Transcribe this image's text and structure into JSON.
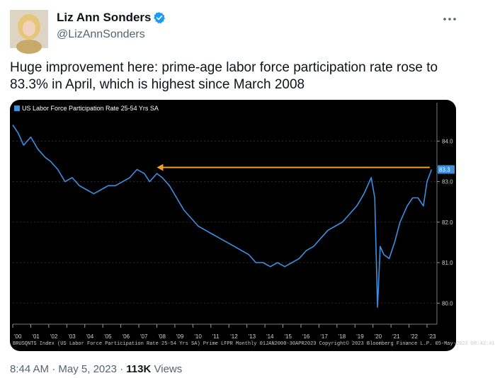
{
  "tweet": {
    "display_name": "Liz Ann Sonders",
    "handle": "@LizAnnSonders",
    "text": "Huge improvement here: prime-age labor force participation rate rose to 83.3% in April, which is highest since March 2008",
    "time": "8:44 AM",
    "separator": "·",
    "date": "May 5, 2023",
    "views_count": "113K",
    "views_label": "Views",
    "verified_color": "#1d9bf0"
  },
  "chart_data": {
    "type": "line",
    "legend": "US Labor Force Participation Rate 25-54 Yrs SA",
    "series": [
      {
        "name": "US Labor Force Participation Rate 25-54 Yrs SA",
        "color": "#3d8fe0",
        "x": [
          2000.0,
          2000.3,
          2000.6,
          2001.0,
          2001.4,
          2001.8,
          2002.1,
          2002.5,
          2002.9,
          2003.3,
          2003.7,
          2004.1,
          2004.5,
          2004.9,
          2005.3,
          2005.7,
          2006.1,
          2006.5,
          2006.9,
          2007.3,
          2007.6,
          2008.0,
          2008.3,
          2008.7,
          2009.1,
          2009.5,
          2009.9,
          2010.3,
          2010.7,
          2011.1,
          2011.5,
          2011.9,
          2012.3,
          2012.7,
          2013.1,
          2013.5,
          2013.9,
          2014.3,
          2014.7,
          2015.1,
          2015.5,
          2015.9,
          2016.3,
          2016.7,
          2017.1,
          2017.5,
          2017.9,
          2018.3,
          2018.7,
          2019.1,
          2019.5,
          2019.9,
          2020.1,
          2020.25,
          2020.4,
          2020.6,
          2020.9,
          2021.2,
          2021.5,
          2021.9,
          2022.2,
          2022.5,
          2022.8,
          2023.0,
          2023.25
        ],
        "y": [
          84.4,
          84.2,
          83.9,
          84.1,
          83.8,
          83.6,
          83.5,
          83.3,
          83.0,
          83.1,
          82.9,
          82.8,
          82.7,
          82.8,
          82.9,
          82.9,
          83.0,
          83.1,
          83.3,
          83.2,
          83.0,
          83.2,
          83.1,
          82.9,
          82.6,
          82.3,
          82.1,
          81.9,
          81.8,
          81.7,
          81.6,
          81.5,
          81.4,
          81.3,
          81.2,
          81.0,
          81.0,
          80.9,
          81.0,
          80.9,
          81.0,
          81.1,
          81.3,
          81.4,
          81.6,
          81.8,
          81.9,
          82.0,
          82.2,
          82.4,
          82.7,
          83.1,
          82.6,
          79.9,
          81.4,
          81.2,
          81.1,
          81.5,
          82.0,
          82.4,
          82.6,
          82.6,
          82.4,
          83.0,
          83.3
        ]
      }
    ],
    "x_tick_labels": [
      "'00",
      "'01",
      "'02",
      "'03",
      "'04",
      "'05",
      "'06",
      "'07",
      "'08",
      "'09",
      "'10",
      "'11",
      "'12",
      "'13",
      "'14",
      "'15",
      "'16",
      "'17",
      "'18",
      "'19",
      "'20",
      "'21",
      "'22",
      "'23"
    ],
    "y_tick_labels": [
      "84.0",
      "83.0",
      "82.0",
      "81.0",
      "80.0"
    ],
    "y_ticks": [
      84.0,
      83.0,
      82.0,
      81.0,
      80.0
    ],
    "ylim": [
      79.55,
      84.95
    ],
    "xlim": [
      2000.0,
      2023.55
    ],
    "last_value_label": "83.3",
    "annotation": {
      "type": "arrow",
      "from_x": 2023.15,
      "to_x": 2008.0,
      "y": 83.35,
      "color": "#f39c2f"
    },
    "grid": true,
    "source_footer": "BRUSQNTS Index (US Labor Force Participation Rate 25-54 Yrs SA) Prime LFPR  Monthly 01JAN2000-30APR2023   Copyright© 2023 Bloomberg Finance L.P.   05-May-2023 08:42:41"
  }
}
